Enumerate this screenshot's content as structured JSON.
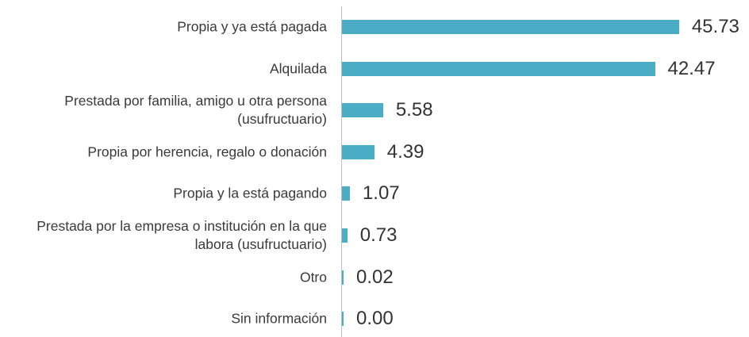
{
  "chart_data": {
    "type": "bar",
    "orientation": "horizontal",
    "color": "#4bacc6",
    "categories": [
      "Propia y ya está pagada",
      "Alquilada",
      "Prestada por familia, amigo u otra persona (usufructuario)",
      "Propia por herencia, regalo o donación",
      "Propia y la está pagando",
      "Prestada por la empresa o institución en la que labora (usufructuario)",
      "Otro",
      "Sin información"
    ],
    "values": [
      45.73,
      42.47,
      5.58,
      4.39,
      1.07,
      0.73,
      0.02,
      0
    ],
    "value_labels": [
      "45.73",
      "42.47",
      "5.58",
      "4.39",
      "1.07",
      "0.73",
      "0.02",
      "0.00"
    ]
  }
}
